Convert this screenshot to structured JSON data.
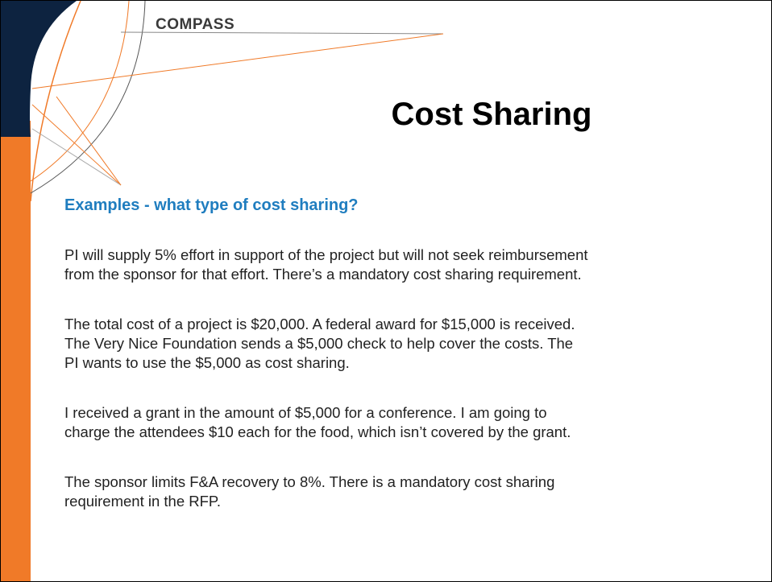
{
  "logo": "COMPASS",
  "title": "Cost Sharing",
  "subtitle": "Examples - what type of cost sharing?",
  "paragraphs": [
    [
      "PI will supply 5% effort in support of the project but will not seek reimbursement",
      "from the sponsor for that effort.  There’s a mandatory cost sharing requirement."
    ],
    [
      "The total cost of a project is $20,000.  A federal award for $15,000 is received.",
      "The Very Nice Foundation sends a $5,000 check to help cover the costs.  The",
      "PI wants to use the $5,000 as cost sharing."
    ],
    [
      "I received a grant in the amount of $5,000 for a conference.  I am going to",
      "charge the attendees $10 each for the food, which isn’t covered by the grant."
    ],
    [
      "The sponsor limits F&A recovery to 8%.  There is a mandatory cost sharing",
      "requirement in the RFP."
    ]
  ]
}
